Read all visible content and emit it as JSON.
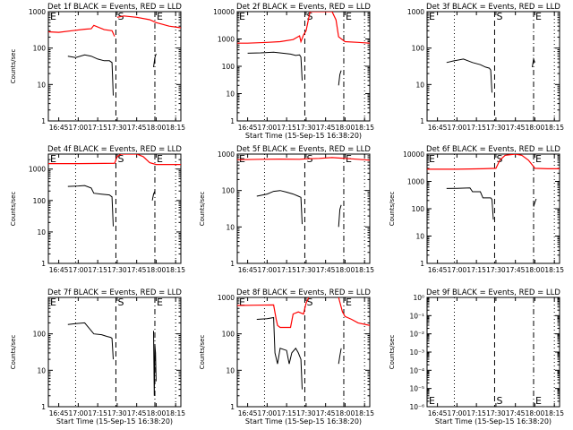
{
  "chart_data": [
    {
      "type": "line",
      "title": "Det 1f BLACK = Events, RED = LLD",
      "ylabel": "Counts/sec",
      "xlabel": "",
      "x_tick_labels": [
        "16:45",
        "17:00",
        "17:15",
        "17:30",
        "17:45",
        "18:00",
        "18:15"
      ],
      "y_tick_labels": [
        "1",
        "10",
        "100",
        "1000"
      ],
      "y_scale": "log",
      "ylim": [
        1,
        1000
      ],
      "xlim": [
        "16:37",
        "18:19"
      ],
      "marker_labels": [
        "E",
        "S",
        "E"
      ],
      "series": [
        {
          "color": "#ff0000",
          "x": [
            "16:37",
            "16:45",
            "16:55",
            "17:05",
            "17:10",
            "17:12",
            "17:20",
            "17:26",
            "17:28"
          ],
          "y": [
            280,
            270,
            300,
            330,
            340,
            420,
            320,
            300,
            210
          ]
        },
        {
          "color": "#ff0000",
          "x": [
            "17:30",
            "17:35",
            "17:45",
            "17:55",
            "18:00",
            "18:10",
            "18:19"
          ],
          "y": [
            700,
            760,
            700,
            600,
            500,
            400,
            360
          ]
        },
        {
          "color": "#000000",
          "x": [
            "16:52",
            "16:58",
            "17:05",
            "17:10",
            "17:15",
            "17:20",
            "17:24",
            "17:26",
            "17:27"
          ],
          "y": [
            60,
            55,
            65,
            60,
            50,
            45,
            45,
            40,
            5
          ]
        },
        {
          "color": "#000000",
          "x": [
            "17:58",
            "17:59",
            "18:00"
          ],
          "y": [
            30,
            55,
            70
          ]
        }
      ]
    },
    {
      "type": "line",
      "title": "Det 2f BLACK = Events, RED = LLD",
      "ylabel": "",
      "xlabel": "Start Time (15-Sep-15 16:38:20)",
      "x_tick_labels": [
        "16:45",
        "17:00",
        "17:15",
        "17:30",
        "17:45",
        "18:00",
        "18:15"
      ],
      "y_tick_labels": [
        "1",
        "10",
        "100",
        "1000",
        "10000"
      ],
      "y_scale": "log",
      "ylim": [
        1,
        10000
      ],
      "xlim": [
        "16:37",
        "18:19"
      ],
      "marker_labels": [
        "E",
        "S",
        "E"
      ],
      "series": [
        {
          "color": "#ff0000",
          "x": [
            "16:37",
            "16:45",
            "17:00",
            "17:10",
            "17:20",
            "17:25",
            "17:26",
            "17:28",
            "17:30",
            "17:33",
            "17:40",
            "17:50",
            "17:53",
            "17:55",
            "18:00",
            "18:10",
            "18:19"
          ],
          "y": [
            700,
            700,
            750,
            800,
            950,
            1300,
            800,
            1400,
            2000,
            10000,
            10000,
            10000,
            5000,
            1200,
            800,
            750,
            700
          ]
        },
        {
          "color": "#000000",
          "x": [
            "16:45",
            "16:55",
            "17:05",
            "17:12",
            "17:18",
            "17:22",
            "17:25",
            "17:26",
            "17:27"
          ],
          "y": [
            300,
            310,
            330,
            300,
            280,
            250,
            260,
            220,
            30
          ]
        },
        {
          "color": "#000000",
          "x": [
            "17:55",
            "17:56",
            "17:57"
          ],
          "y": [
            20,
            50,
            70
          ]
        }
      ]
    },
    {
      "type": "line",
      "title": "Det 3f BLACK = Events, RED = LLD",
      "ylabel": "",
      "xlabel": "",
      "x_tick_labels": [
        "16:45",
        "17:00",
        "17:15",
        "17:30",
        "17:45",
        "18:00",
        "18:15"
      ],
      "y_tick_labels": [
        "1",
        "10",
        "100",
        "1000"
      ],
      "y_scale": "log",
      "ylim": [
        1,
        1000
      ],
      "xlim": [
        "16:37",
        "18:19"
      ],
      "marker_labels": [
        "E",
        "S",
        "E"
      ],
      "series": [
        {
          "color": "#000000",
          "x": [
            "16:52",
            "16:58",
            "17:05",
            "17:12",
            "17:18",
            "17:22",
            "17:25",
            "17:26",
            "17:27"
          ],
          "y": [
            40,
            45,
            50,
            40,
            35,
            30,
            28,
            25,
            6
          ]
        },
        {
          "color": "#000000",
          "x": [
            "17:58",
            "17:59",
            "18:00"
          ],
          "y": [
            30,
            50,
            40
          ]
        }
      ]
    },
    {
      "type": "line",
      "title": "Det 4f BLACK = Events, RED = LLD",
      "ylabel": "Counts/sec",
      "xlabel": "",
      "x_tick_labels": [
        "16:45",
        "17:00",
        "17:15",
        "17:30",
        "17:45",
        "18:00",
        "18:15"
      ],
      "y_tick_labels": [
        "1",
        "10",
        "100",
        "1000"
      ],
      "y_scale": "log",
      "ylim": [
        1,
        3000
      ],
      "xlim": [
        "16:37",
        "18:19"
      ],
      "marker_labels": [
        "E",
        "S",
        "E"
      ],
      "series": [
        {
          "color": "#ff0000",
          "x": [
            "16:37",
            "17:00",
            "17:20",
            "17:28",
            "17:30",
            "17:33",
            "17:38",
            "17:45",
            "17:50",
            "17:55",
            "18:00",
            "18:10",
            "18:19"
          ],
          "y": [
            1500,
            1500,
            1520,
            1530,
            2500,
            3000,
            3000,
            3000,
            2500,
            1600,
            1400,
            1400,
            1400
          ]
        },
        {
          "color": "#000000",
          "x": [
            "16:52",
            "17:00",
            "17:05",
            "17:10",
            "17:12",
            "17:18",
            "17:24",
            "17:26",
            "17:27"
          ],
          "y": [
            280,
            290,
            300,
            250,
            170,
            160,
            150,
            130,
            15
          ]
        },
        {
          "color": "#000000",
          "x": [
            "17:57",
            "17:58",
            "17:59"
          ],
          "y": [
            100,
            160,
            200
          ]
        }
      ]
    },
    {
      "type": "line",
      "title": "Det 5f BLACK = Events, RED = LLD",
      "ylabel": "Counts/sec",
      "xlabel": "",
      "x_tick_labels": [
        "16:45",
        "17:00",
        "17:15",
        "17:30",
        "17:45",
        "18:00",
        "18:15"
      ],
      "y_tick_labels": [
        "1",
        "10",
        "100",
        "1000"
      ],
      "y_scale": "log",
      "ylim": [
        1,
        1000
      ],
      "xlim": [
        "16:37",
        "18:19"
      ],
      "marker_labels": [
        "E",
        "S",
        "E"
      ],
      "series": [
        {
          "color": "#ff0000",
          "x": [
            "16:37",
            "16:55",
            "17:10",
            "17:25",
            "17:30",
            "17:40",
            "17:50",
            "18:00",
            "18:10",
            "18:19"
          ],
          "y": [
            700,
            720,
            730,
            720,
            740,
            760,
            800,
            760,
            720,
            680
          ]
        },
        {
          "color": "#000000",
          "x": [
            "16:52",
            "17:00",
            "17:05",
            "17:10",
            "17:15",
            "17:20",
            "17:24",
            "17:26",
            "17:27"
          ],
          "y": [
            70,
            80,
            95,
            100,
            90,
            80,
            70,
            65,
            12
          ]
        },
        {
          "color": "#000000",
          "x": [
            "17:55",
            "17:56",
            "17:57"
          ],
          "y": [
            10,
            30,
            40
          ]
        }
      ]
    },
    {
      "type": "line",
      "title": "Det 6f BLACK = Events, RED = LLD",
      "ylabel": "Counts/sec",
      "xlabel": "",
      "x_tick_labels": [
        "16:45",
        "17:00",
        "17:15",
        "17:30",
        "17:45",
        "18:00",
        "18:15"
      ],
      "y_tick_labels": [
        "1",
        "10",
        "100",
        "1000",
        "10000"
      ],
      "y_scale": "log",
      "ylim": [
        1,
        10000
      ],
      "xlim": [
        "16:37",
        "18:19"
      ],
      "marker_labels": [
        "E",
        "S",
        "E"
      ],
      "series": [
        {
          "color": "#ff0000",
          "x": [
            "16:37",
            "17:00",
            "17:20",
            "17:30",
            "17:33",
            "17:37",
            "17:45",
            "17:50",
            "17:55",
            "17:58",
            "18:00",
            "18:10",
            "18:19"
          ],
          "y": [
            2800,
            2800,
            2900,
            3000,
            6000,
            9000,
            10000,
            9000,
            6000,
            4000,
            3000,
            2900,
            2900
          ]
        },
        {
          "color": "#000000",
          "x": [
            "16:52",
            "17:00",
            "17:10",
            "17:12",
            "17:18",
            "17:20",
            "17:26",
            "17:27",
            "17:28"
          ],
          "y": [
            550,
            560,
            580,
            420,
            420,
            250,
            250,
            220,
            40
          ]
        },
        {
          "color": "#000000",
          "x": [
            "17:59",
            "18:00",
            "18:01"
          ],
          "y": [
            120,
            170,
            230
          ]
        }
      ]
    },
    {
      "type": "line",
      "title": "Det 7f BLACK = Events, RED = LLD",
      "ylabel": "Counts/sec",
      "xlabel": "Start Time (15-Sep-15 16:38:20)",
      "x_tick_labels": [
        "16:45",
        "17:00",
        "17:15",
        "17:30",
        "17:45",
        "18:00",
        "18:15"
      ],
      "y_tick_labels": [
        "1",
        "10",
        "100"
      ],
      "y_scale": "log",
      "ylim": [
        1,
        1000
      ],
      "xlim": [
        "16:37",
        "18:19"
      ],
      "marker_labels": [
        "E",
        "S",
        "E"
      ],
      "series": [
        {
          "color": "#000000",
          "x": [
            "16:52",
            "16:58",
            "17:05",
            "17:12",
            "17:18",
            "17:22",
            "17:25",
            "17:26",
            "17:27"
          ],
          "y": [
            180,
            190,
            200,
            100,
            95,
            85,
            80,
            75,
            20
          ]
        },
        {
          "color": "#000000",
          "x": [
            "17:58",
            "17:58.5",
            "17:59",
            "17:59.5",
            "18:00"
          ],
          "y": [
            120,
            2,
            50,
            30,
            5
          ]
        }
      ]
    },
    {
      "type": "line",
      "title": "Det 8f BLACK = Events, RED = LLD",
      "ylabel": "Counts/sec",
      "xlabel": "Start Time (15-Sep-15 16:38:20)",
      "x_tick_labels": [
        "16:45",
        "17:00",
        "17:15",
        "17:30",
        "17:45",
        "18:00",
        "18:15"
      ],
      "y_tick_labels": [
        "1",
        "10",
        "100",
        "1000"
      ],
      "y_scale": "log",
      "ylim": [
        1,
        1000
      ],
      "xlim": [
        "16:37",
        "18:19"
      ],
      "marker_labels": [
        "E",
        "S",
        "E"
      ],
      "series": [
        {
          "color": "#ff0000",
          "x": [
            "16:37",
            "16:50",
            "17:05",
            "17:07",
            "17:08",
            "17:10",
            "17:18",
            "17:20",
            "17:24",
            "17:28",
            "17:30",
            "17:32"
          ],
          "y": [
            600,
            610,
            620,
            250,
            170,
            150,
            150,
            350,
            400,
            350,
            700,
            1000
          ]
        },
        {
          "color": "#ff0000",
          "x": [
            "17:55",
            "17:58",
            "18:00",
            "18:05",
            "18:10",
            "18:19"
          ],
          "y": [
            1000,
            400,
            300,
            250,
            200,
            170
          ]
        },
        {
          "color": "#000000",
          "x": [
            "16:52",
            "17:00",
            "17:05",
            "17:06",
            "17:08",
            "17:10",
            "17:15",
            "17:17",
            "17:19",
            "17:22",
            "17:24",
            "17:26",
            "17:27"
          ],
          "y": [
            250,
            260,
            280,
            30,
            15,
            40,
            35,
            15,
            30,
            40,
            30,
            20,
            3
          ]
        },
        {
          "color": "#000000",
          "x": [
            "17:55",
            "17:56",
            "17:57"
          ],
          "y": [
            15,
            25,
            40
          ]
        }
      ]
    },
    {
      "type": "line",
      "title": "Det 9f BLACK = Events, RED = LLD",
      "ylabel": "Counts/sec",
      "xlabel": "Start Time (15-Sep-15 16:38:20)",
      "x_tick_labels": [
        "16:45",
        "17:00",
        "17:15",
        "17:30",
        "17:45",
        "18:00",
        "18:15"
      ],
      "y_tick_labels": [
        "10⁰",
        "10⁻¹",
        "10⁻²",
        "10⁻³",
        "10⁻⁴",
        "10⁻⁵",
        "10⁻⁶"
      ],
      "y_scale": "log",
      "ylim": [
        1e-06,
        1
      ],
      "xlim": [
        "16:37",
        "18:19"
      ],
      "marker_labels": [
        "E",
        "S",
        "E"
      ],
      "series": []
    }
  ]
}
